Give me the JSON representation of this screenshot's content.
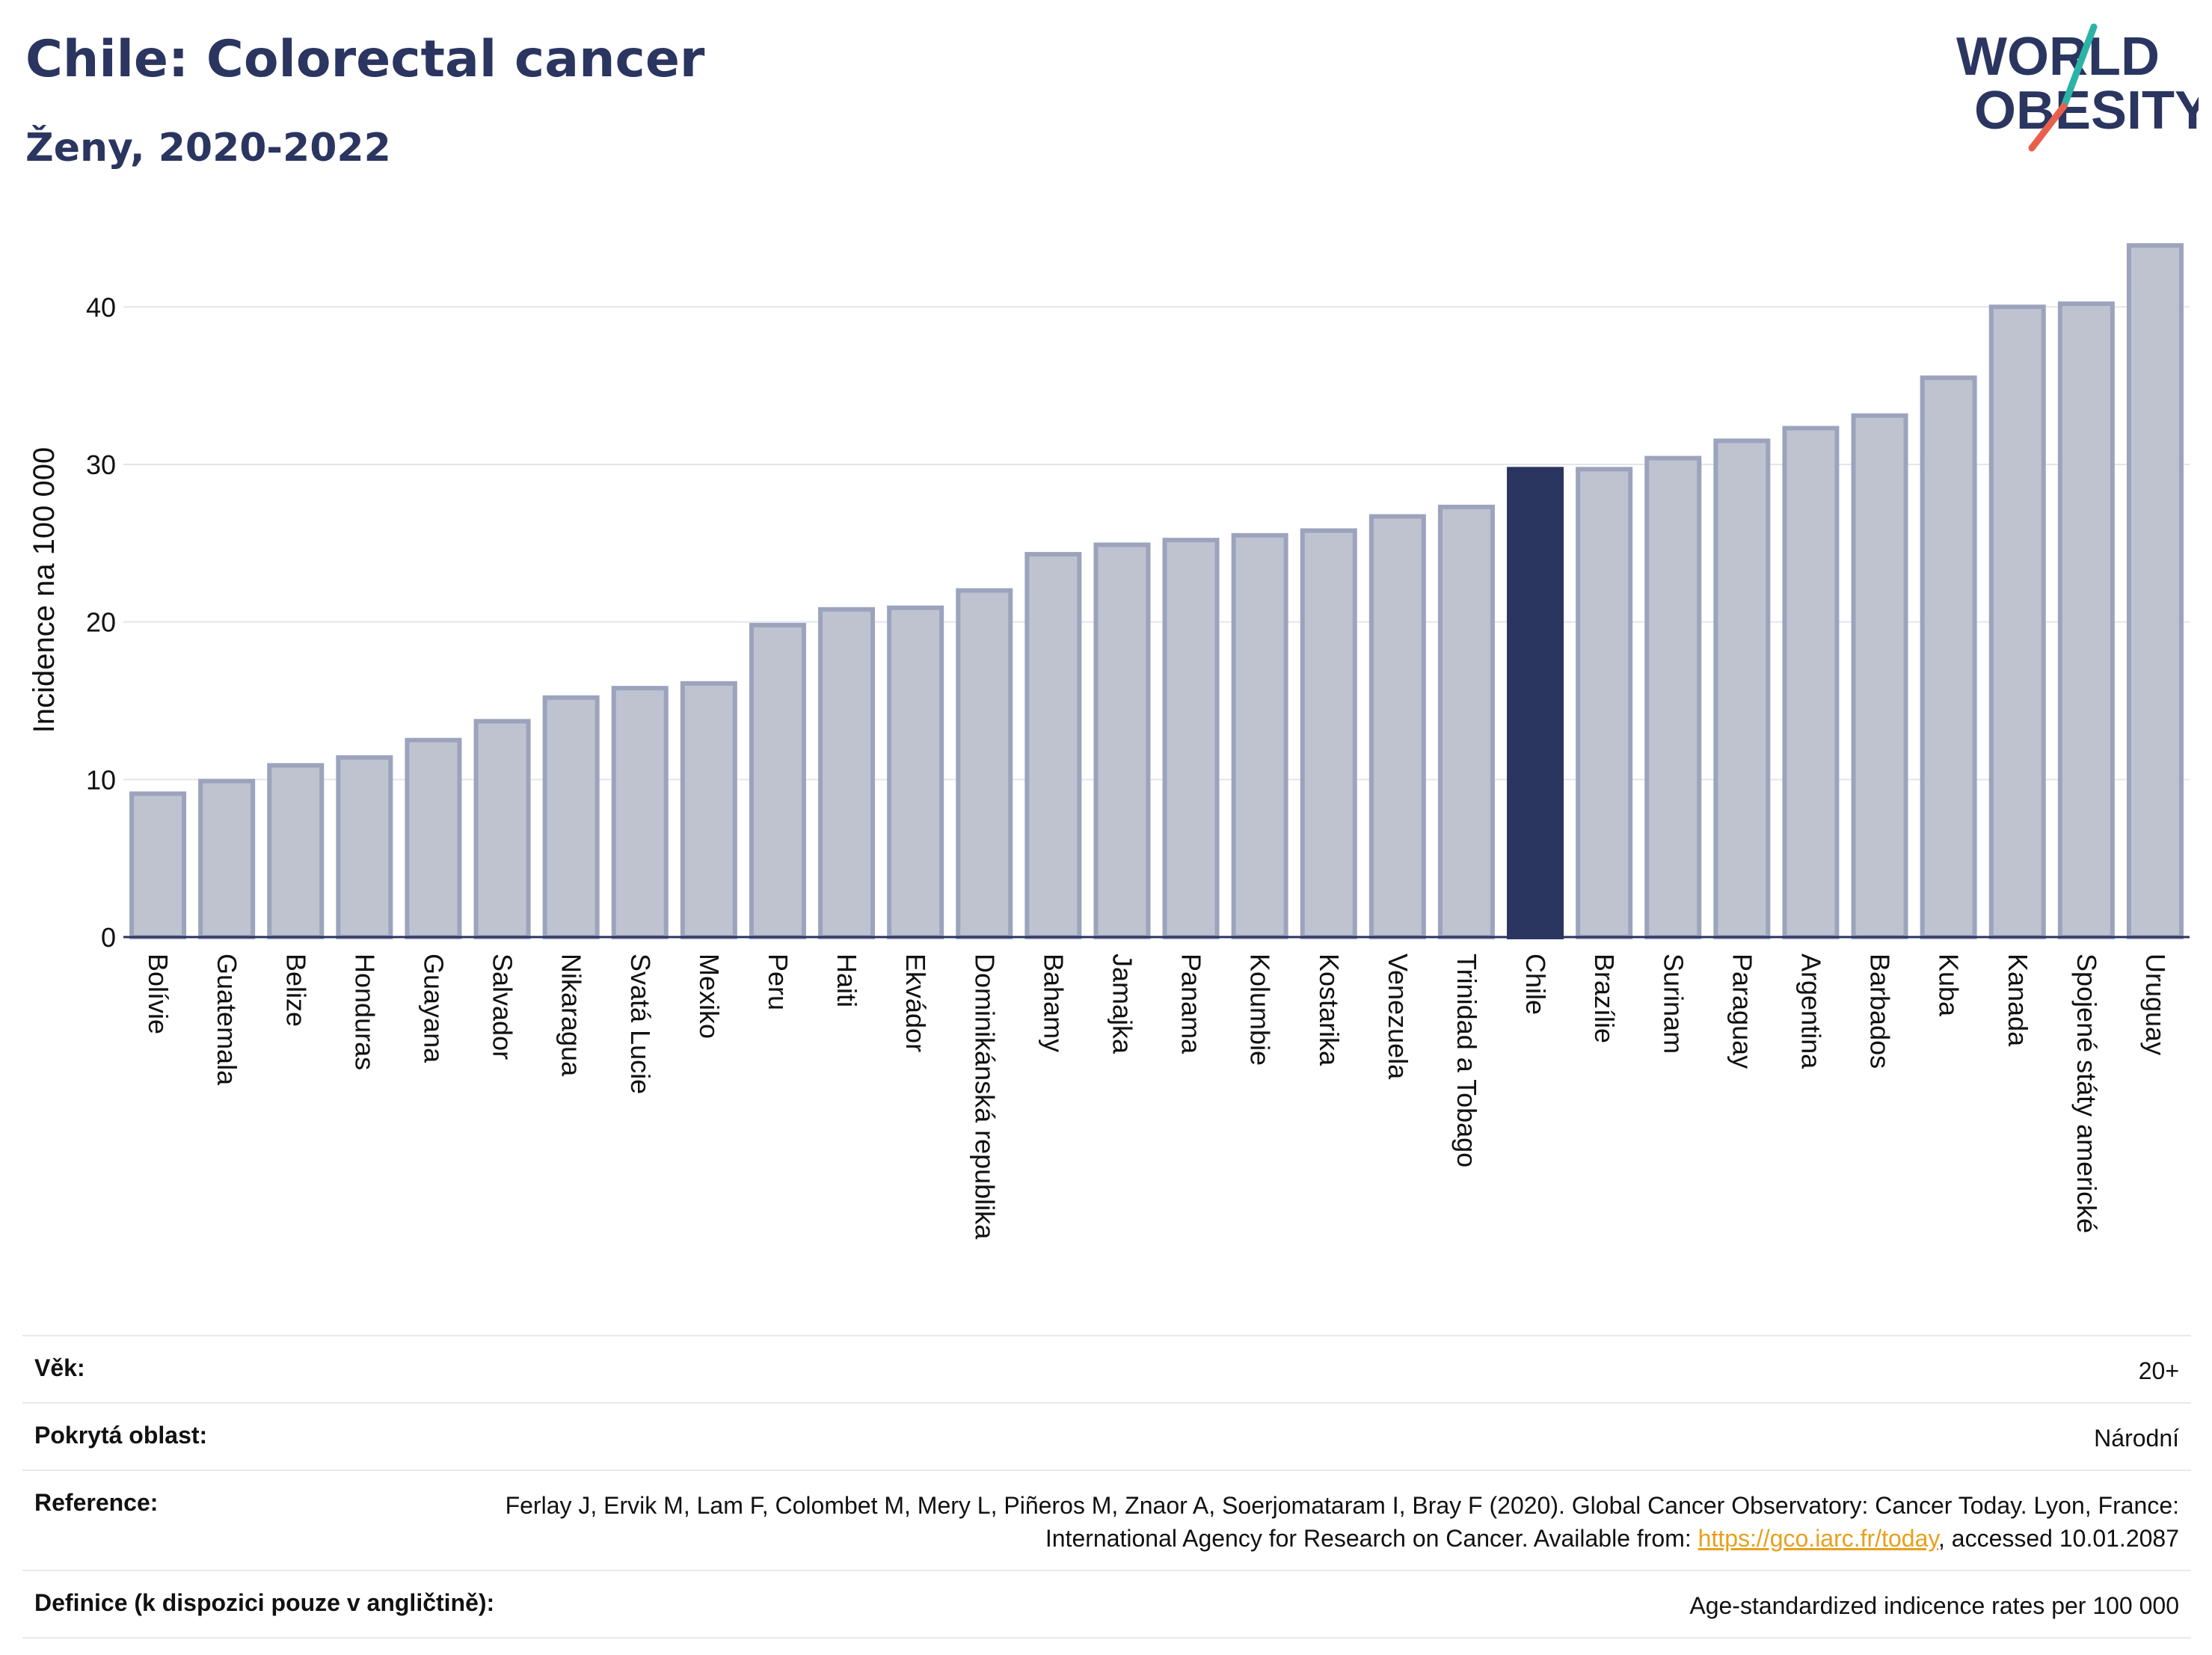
{
  "header": {
    "title": "Chile: Colorectal cancer",
    "subtitle": "Ženy, 2020-2022",
    "logo_text_line1": "WORLD",
    "logo_text_line2": "OBESITY"
  },
  "colors": {
    "bar": "#bfc3d0",
    "bar_stroke": "#9ca3bd",
    "highlight": "#2a3560",
    "text": "#2a3560",
    "logo_slash_teal": "#2bb3a7",
    "logo_slash_red": "#e8604c"
  },
  "chart_data": {
    "type": "bar",
    "title": "Chile: Colorectal cancer",
    "subtitle": "Ženy, 2020-2022",
    "ylabel": "Incidence na 100 000",
    "xlabel": "",
    "ylim": [
      0,
      45
    ],
    "yticks": [
      0,
      10,
      20,
      30,
      40
    ],
    "grid": true,
    "highlight": "Chile",
    "categories": [
      "Bolívie",
      "Guatemala",
      "Belize",
      "Honduras",
      "Guayana",
      "Salvador",
      "Nikaragua",
      "Svatá Lucie",
      "Mexiko",
      "Peru",
      "Haiti",
      "Ekvádor",
      "Dominikánská republika",
      "Bahamy",
      "Jamajka",
      "Panama",
      "Kolumbie",
      "Kostarika",
      "Venezuela",
      "Trinidad a Tobago",
      "Chile",
      "Brazílie",
      "Surinam",
      "Paraguay",
      "Argentina",
      "Barbados",
      "Kuba",
      "Kanada",
      "Spojené státy americké",
      "Uruguay"
    ],
    "values": [
      9.1,
      9.9,
      10.9,
      11.4,
      12.5,
      13.7,
      15.2,
      15.8,
      16.1,
      19.8,
      20.8,
      20.9,
      22.0,
      24.3,
      24.9,
      25.2,
      25.5,
      25.8,
      26.7,
      27.3,
      29.7,
      29.7,
      30.4,
      31.5,
      32.3,
      33.1,
      35.5,
      40.0,
      40.2,
      43.9
    ]
  },
  "meta": {
    "rows": [
      {
        "key": "Věk:",
        "value": "20+"
      },
      {
        "key": "Pokrytá oblast:",
        "value": "Národní"
      },
      {
        "key": "Definice (k dispozici pouze v angličtině):",
        "value": "Age-standardized indicence rates per 100 000"
      }
    ],
    "reference_key": "Reference:",
    "reference_text_before": "Ferlay J, Ervik M, Lam F, Colombet M, Mery L, Piñeros M, Znaor A, Soerjomataram I, Bray F (2020). Global Cancer Observatory: Cancer Today. Lyon, France: International Agency for Research on Cancer. Available from: ",
    "reference_link": "https://gco.iarc.fr/today",
    "reference_text_after": ", accessed 10.01.2087"
  }
}
